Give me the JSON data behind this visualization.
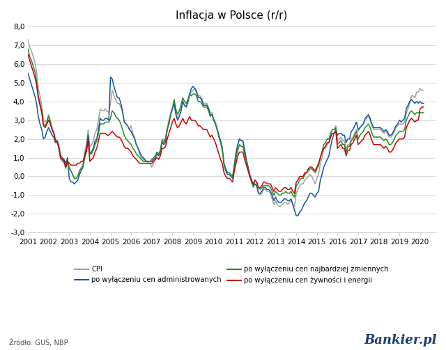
{
  "title": "Inflacja w Polsce (r/r)",
  "ylim": [
    -3.0,
    8.0
  ],
  "yticks": [
    -3.0,
    -2.0,
    -1.0,
    0.0,
    1.0,
    2.0,
    3.0,
    4.0,
    5.0,
    6.0,
    7.0,
    8.0
  ],
  "source_text": "Żródło: GUS, NBP",
  "bankier_text": "Bankier.pl",
  "colors": {
    "cpi": "#a0a0a0",
    "adm": "#1455a4",
    "volatile": "#228B22",
    "food_energy": "#cc0000"
  },
  "legend": [
    {
      "label": "CPI",
      "color": "#a0a0a0"
    },
    {
      "label": "po wyłączeniu cen administrowanych",
      "color": "#1455a4"
    },
    {
      "label": "po wyłączeniu cen najbardziej zmiennych",
      "color": "#228B22"
    },
    {
      "label": "po wyłączeniu cen żywności i energii",
      "color": "#cc0000"
    }
  ],
  "start_year": 2001,
  "start_month": 1,
  "cpi": [
    7.3,
    6.9,
    6.7,
    6.4,
    6.1,
    5.6,
    4.7,
    4.3,
    3.8,
    3.0,
    2.9,
    3.0,
    3.3,
    3.0,
    2.6,
    2.4,
    1.9,
    1.9,
    1.5,
    0.9,
    0.8,
    0.7,
    0.4,
    0.8,
    0.5,
    0.3,
    0.1,
    -0.1,
    -0.1,
    0.0,
    0.3,
    0.5,
    0.7,
    1.3,
    1.7,
    2.5,
    1.6,
    1.7,
    1.9,
    2.3,
    2.5,
    3.0,
    3.6,
    3.5,
    3.5,
    3.6,
    3.5,
    3.4,
    3.9,
    4.6,
    4.3,
    4.1,
    3.9,
    3.9,
    3.7,
    3.4,
    2.9,
    2.8,
    2.7,
    2.5,
    2.7,
    2.3,
    2.1,
    1.7,
    1.5,
    1.2,
    1.0,
    0.9,
    0.8,
    0.8,
    0.7,
    0.7,
    0.5,
    0.7,
    0.9,
    1.2,
    1.1,
    1.4,
    2.0,
    1.9,
    2.1,
    2.6,
    3.0,
    3.4,
    3.7,
    3.9,
    3.4,
    3.1,
    3.2,
    3.5,
    4.0,
    3.8,
    3.7,
    3.9,
    4.3,
    4.5,
    4.6,
    4.7,
    4.6,
    4.3,
    4.3,
    4.2,
    3.9,
    3.9,
    3.9,
    3.7,
    3.4,
    3.4,
    3.1,
    2.9,
    2.6,
    2.2,
    1.9,
    1.5,
    0.7,
    0.4,
    0.2,
    0.2,
    0.1,
    0.0,
    0.7,
    1.3,
    1.7,
    2.0,
    1.9,
    1.9,
    1.4,
    0.9,
    0.5,
    0.0,
    -0.3,
    -0.6,
    -0.4,
    -0.5,
    -0.9,
    -1.0,
    -0.9,
    -0.7,
    -0.7,
    -0.8,
    -0.8,
    -0.9,
    -1.2,
    -1.5,
    -1.3,
    -1.5,
    -1.6,
    -1.6,
    -1.5,
    -1.4,
    -1.4,
    -1.5,
    -1.4,
    -1.3,
    -1.5,
    -1.6,
    -0.9,
    -0.7,
    -0.5,
    -0.4,
    -0.4,
    -0.2,
    -0.1,
    0.0,
    0.1,
    0.0,
    -0.2,
    -0.4,
    -0.1,
    0.1,
    0.7,
    1.0,
    1.5,
    1.5,
    1.7,
    1.8,
    2.2,
    2.5,
    2.5,
    2.7,
    1.9,
    2.0,
    2.1,
    1.9,
    1.9,
    1.5,
    1.7,
    1.7,
    2.0,
    2.1,
    2.3,
    2.5,
    2.4,
    2.6,
    2.7,
    2.8,
    3.0,
    3.1,
    3.2,
    3.0,
    2.7,
    2.5,
    2.5,
    2.5,
    2.5,
    2.5,
    2.4,
    2.3,
    2.4,
    2.3,
    2.1,
    2.1,
    2.2,
    2.4,
    2.6,
    2.7,
    2.8,
    2.8,
    2.8,
    2.9,
    3.4,
    3.6,
    3.9,
    4.3,
    4.3,
    4.2,
    4.5,
    4.5,
    4.7,
    4.6,
    4.6
  ],
  "adm": [
    5.5,
    5.2,
    4.9,
    4.6,
    4.3,
    3.9,
    3.2,
    2.8,
    2.5,
    2.0,
    2.1,
    2.4,
    2.6,
    2.4,
    2.2,
    2.1,
    1.8,
    1.9,
    1.6,
    1.1,
    1.0,
    0.9,
    0.7,
    1.0,
    -0.1,
    -0.3,
    -0.3,
    -0.4,
    -0.3,
    -0.2,
    0.1,
    0.3,
    0.5,
    1.1,
    1.5,
    2.2,
    1.2,
    1.3,
    1.5,
    1.9,
    2.0,
    2.5,
    3.1,
    3.0,
    3.0,
    3.1,
    3.1,
    3.0,
    5.3,
    5.2,
    4.8,
    4.5,
    4.2,
    4.2,
    3.9,
    3.5,
    2.9,
    2.8,
    2.7,
    2.5,
    2.4,
    2.2,
    2.0,
    1.7,
    1.5,
    1.3,
    1.1,
    1.0,
    0.9,
    0.8,
    0.8,
    0.8,
    0.8,
    0.9,
    1.0,
    1.2,
    1.1,
    1.3,
    1.8,
    1.7,
    1.8,
    2.5,
    2.8,
    3.3,
    3.6,
    3.9,
    3.3,
    3.0,
    3.2,
    3.5,
    4.0,
    3.8,
    3.7,
    4.0,
    4.4,
    4.7,
    4.8,
    4.7,
    4.5,
    4.2,
    4.2,
    4.1,
    3.8,
    3.8,
    3.8,
    3.6,
    3.3,
    3.3,
    3.0,
    2.8,
    2.5,
    2.2,
    1.9,
    1.5,
    0.6,
    0.3,
    0.1,
    0.1,
    0.0,
    -0.1,
    0.6,
    1.2,
    1.7,
    2.0,
    1.9,
    1.9,
    1.4,
    0.9,
    0.5,
    0.1,
    -0.2,
    -0.5,
    -0.4,
    -0.5,
    -0.9,
    -0.9,
    -0.8,
    -0.6,
    -0.6,
    -0.7,
    -0.7,
    -0.8,
    -1.0,
    -1.3,
    -1.1,
    -1.3,
    -1.4,
    -1.4,
    -1.3,
    -1.2,
    -1.2,
    -1.3,
    -1.3,
    -1.2,
    -1.5,
    -1.8,
    -2.1,
    -2.1,
    -1.9,
    -1.8,
    -1.6,
    -1.4,
    -1.3,
    -1.1,
    -0.9,
    -0.9,
    -1.0,
    -1.1,
    -0.9,
    -0.8,
    -0.2,
    0.1,
    0.5,
    0.7,
    0.9,
    1.1,
    1.6,
    2.0,
    2.3,
    2.5,
    2.2,
    2.3,
    2.3,
    2.2,
    2.2,
    1.8,
    2.0,
    2.0,
    2.4,
    2.5,
    2.7,
    2.9,
    2.5,
    2.6,
    2.7,
    2.8,
    3.1,
    3.2,
    3.3,
    3.1,
    2.8,
    2.6,
    2.6,
    2.6,
    2.6,
    2.6,
    2.5,
    2.4,
    2.5,
    2.4,
    2.2,
    2.2,
    2.3,
    2.5,
    2.7,
    2.8,
    3.0,
    2.9,
    3.0,
    3.1,
    3.6,
    3.8,
    4.0,
    4.1,
    4.0,
    3.9,
    4.0,
    3.9,
    4.0,
    3.9,
    3.9
  ],
  "volatile": [
    6.8,
    6.4,
    6.2,
    5.9,
    5.6,
    5.1,
    4.3,
    3.9,
    3.5,
    2.8,
    2.7,
    2.9,
    3.2,
    2.9,
    2.5,
    2.3,
    1.8,
    1.8,
    1.5,
    1.0,
    0.9,
    0.8,
    0.5,
    0.9,
    0.4,
    0.3,
    0.1,
    -0.1,
    -0.1,
    0.0,
    0.3,
    0.4,
    0.5,
    1.0,
    1.3,
    1.9,
    1.2,
    1.2,
    1.4,
    1.7,
    1.9,
    2.3,
    2.8,
    2.8,
    2.8,
    2.9,
    2.9,
    2.9,
    3.1,
    3.5,
    3.4,
    3.2,
    3.1,
    3.0,
    2.8,
    2.5,
    2.2,
    2.0,
    1.9,
    1.8,
    1.7,
    1.5,
    1.4,
    1.2,
    1.1,
    1.0,
    0.9,
    0.8,
    0.8,
    0.8,
    0.8,
    0.8,
    0.9,
    1.0,
    1.1,
    1.3,
    1.2,
    1.4,
    1.9,
    1.8,
    2.0,
    2.5,
    2.9,
    3.3,
    3.6,
    4.1,
    3.6,
    3.3,
    3.5,
    3.8,
    4.2,
    4.0,
    3.9,
    4.1,
    4.4,
    4.3,
    4.4,
    4.4,
    4.3,
    4.0,
    4.0,
    3.9,
    3.7,
    3.7,
    3.7,
    3.5,
    3.2,
    3.3,
    3.0,
    2.8,
    2.5,
    2.1,
    1.8,
    1.4,
    0.7,
    0.4,
    0.2,
    0.2,
    0.1,
    0.0,
    0.5,
    1.0,
    1.4,
    1.7,
    1.6,
    1.6,
    1.2,
    0.8,
    0.4,
    0.0,
    -0.3,
    -0.5,
    -0.2,
    -0.3,
    -0.6,
    -0.7,
    -0.6,
    -0.5,
    -0.5,
    -0.5,
    -0.5,
    -0.6,
    -0.8,
    -1.0,
    -0.8,
    -0.9,
    -1.0,
    -1.0,
    -0.9,
    -0.9,
    -0.8,
    -0.9,
    -0.9,
    -0.8,
    -1.0,
    -1.1,
    -0.5,
    -0.4,
    -0.2,
    -0.1,
    -0.1,
    0.1,
    0.2,
    0.3,
    0.4,
    0.4,
    0.3,
    0.2,
    0.4,
    0.6,
    1.0,
    1.3,
    1.7,
    1.8,
    2.0,
    2.0,
    2.3,
    2.5,
    2.5,
    2.6,
    1.7,
    1.8,
    1.9,
    1.7,
    1.7,
    1.3,
    1.6,
    1.6,
    1.9,
    2.0,
    2.2,
    2.4,
    2.0,
    2.2,
    2.3,
    2.4,
    2.6,
    2.7,
    2.8,
    2.6,
    2.3,
    2.1,
    2.1,
    2.1,
    2.1,
    2.1,
    2.0,
    1.9,
    2.0,
    1.9,
    1.7,
    1.7,
    1.8,
    2.0,
    2.2,
    2.3,
    2.4,
    2.4,
    2.4,
    2.5,
    3.0,
    3.2,
    3.4,
    3.5,
    3.4,
    3.3,
    3.4,
    3.4,
    3.4,
    3.4,
    3.4
  ],
  "food_energy": [
    6.5,
    6.2,
    5.9,
    5.6,
    5.3,
    4.9,
    4.2,
    3.8,
    3.4,
    2.7,
    2.6,
    2.8,
    3.0,
    2.8,
    2.5,
    2.3,
    1.9,
    1.9,
    1.5,
    1.0,
    0.9,
    0.8,
    0.5,
    0.8,
    0.7,
    0.6,
    0.6,
    0.6,
    0.6,
    0.7,
    0.7,
    0.8,
    0.8,
    1.1,
    1.4,
    1.9,
    0.8,
    0.9,
    1.0,
    1.3,
    1.5,
    1.9,
    2.3,
    2.3,
    2.3,
    2.3,
    2.2,
    2.2,
    2.3,
    2.4,
    2.3,
    2.2,
    2.1,
    2.1,
    2.0,
    1.8,
    1.6,
    1.5,
    1.5,
    1.4,
    1.3,
    1.1,
    1.0,
    0.9,
    0.8,
    0.7,
    0.7,
    0.7,
    0.7,
    0.7,
    0.7,
    0.7,
    0.7,
    0.8,
    0.9,
    1.0,
    0.9,
    1.1,
    1.5,
    1.5,
    1.6,
    2.0,
    2.3,
    2.6,
    2.9,
    3.1,
    2.8,
    2.6,
    2.7,
    2.9,
    3.1,
    2.9,
    2.8,
    3.0,
    3.2,
    3.0,
    3.0,
    3.0,
    2.9,
    2.7,
    2.7,
    2.6,
    2.5,
    2.5,
    2.5,
    2.3,
    2.1,
    2.2,
    2.0,
    1.8,
    1.5,
    1.2,
    0.9,
    0.7,
    0.2,
    0.0,
    -0.1,
    -0.1,
    -0.2,
    -0.3,
    0.3,
    0.7,
    1.1,
    1.3,
    1.3,
    1.3,
    0.9,
    0.6,
    0.3,
    0.0,
    -0.2,
    -0.4,
    -0.2,
    -0.3,
    -0.6,
    -0.6,
    -0.5,
    -0.3,
    -0.3,
    -0.4,
    -0.4,
    -0.4,
    -0.6,
    -0.8,
    -0.6,
    -0.7,
    -0.8,
    -0.8,
    -0.7,
    -0.6,
    -0.6,
    -0.7,
    -0.7,
    -0.6,
    -0.8,
    -0.9,
    -0.3,
    -0.2,
    0.0,
    0.0,
    0.0,
    0.2,
    0.2,
    0.4,
    0.5,
    0.5,
    0.4,
    0.3,
    0.5,
    0.7,
    1.0,
    1.3,
    1.5,
    1.6,
    1.8,
    1.8,
    2.1,
    2.3,
    2.3,
    2.4,
    1.5,
    1.6,
    1.7,
    1.5,
    1.5,
    1.1,
    1.4,
    1.4,
    1.7,
    1.8,
    2.0,
    2.2,
    1.7,
    1.8,
    1.9,
    2.0,
    2.2,
    2.3,
    2.4,
    2.2,
    1.9,
    1.7,
    1.7,
    1.7,
    1.7,
    1.7,
    1.6,
    1.5,
    1.6,
    1.5,
    1.3,
    1.3,
    1.4,
    1.6,
    1.8,
    1.9,
    2.0,
    2.0,
    2.0,
    2.1,
    2.6,
    2.8,
    3.0,
    3.1,
    3.0,
    2.9,
    3.0,
    3.0,
    3.6,
    3.7,
    3.7
  ]
}
